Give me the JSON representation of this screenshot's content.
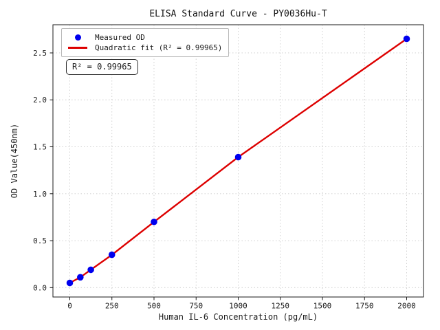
{
  "chart_data": {
    "type": "scatter",
    "title": "ELISA Standard Curve - PY0036Hu-T",
    "xlabel": "Human IL-6 Concentration (pg/mL)",
    "ylabel": "OD Value(450nm)",
    "xlim": [
      -100,
      2100
    ],
    "ylim": [
      -0.1,
      2.8
    ],
    "xticks": [
      0,
      250,
      500,
      750,
      1000,
      1250,
      1500,
      1750,
      2000
    ],
    "xtick_labels": [
      "0",
      "250",
      "500",
      "750",
      "1000",
      "1250",
      "1500",
      "1750",
      "2000"
    ],
    "yticks": [
      0.0,
      0.5,
      1.0,
      1.5,
      2.0,
      2.5
    ],
    "ytick_labels": [
      "0.0",
      "0.5",
      "1.0",
      "1.5",
      "2.0",
      "2.5"
    ],
    "grid": true,
    "grid_color": "#cccccc",
    "legend_position": "upper left",
    "r_squared": 0.99965,
    "series": [
      {
        "name": "Measured OD",
        "type": "scatter",
        "color": "#0000ee",
        "x": [
          0,
          62.5,
          125,
          250,
          500,
          1000,
          2000
        ],
        "y": [
          0.05,
          0.11,
          0.19,
          0.35,
          0.7,
          1.39,
          2.65
        ]
      },
      {
        "name": "Quadratic fit (R² = 0.99965)",
        "type": "line",
        "color": "#dd0000",
        "x": [
          0,
          62.5,
          125,
          250,
          500,
          1000,
          2000
        ],
        "y": [
          0.05,
          0.11,
          0.19,
          0.35,
          0.7,
          1.39,
          2.65
        ]
      }
    ]
  },
  "annotation": {
    "text": "R² = 0.99965"
  }
}
